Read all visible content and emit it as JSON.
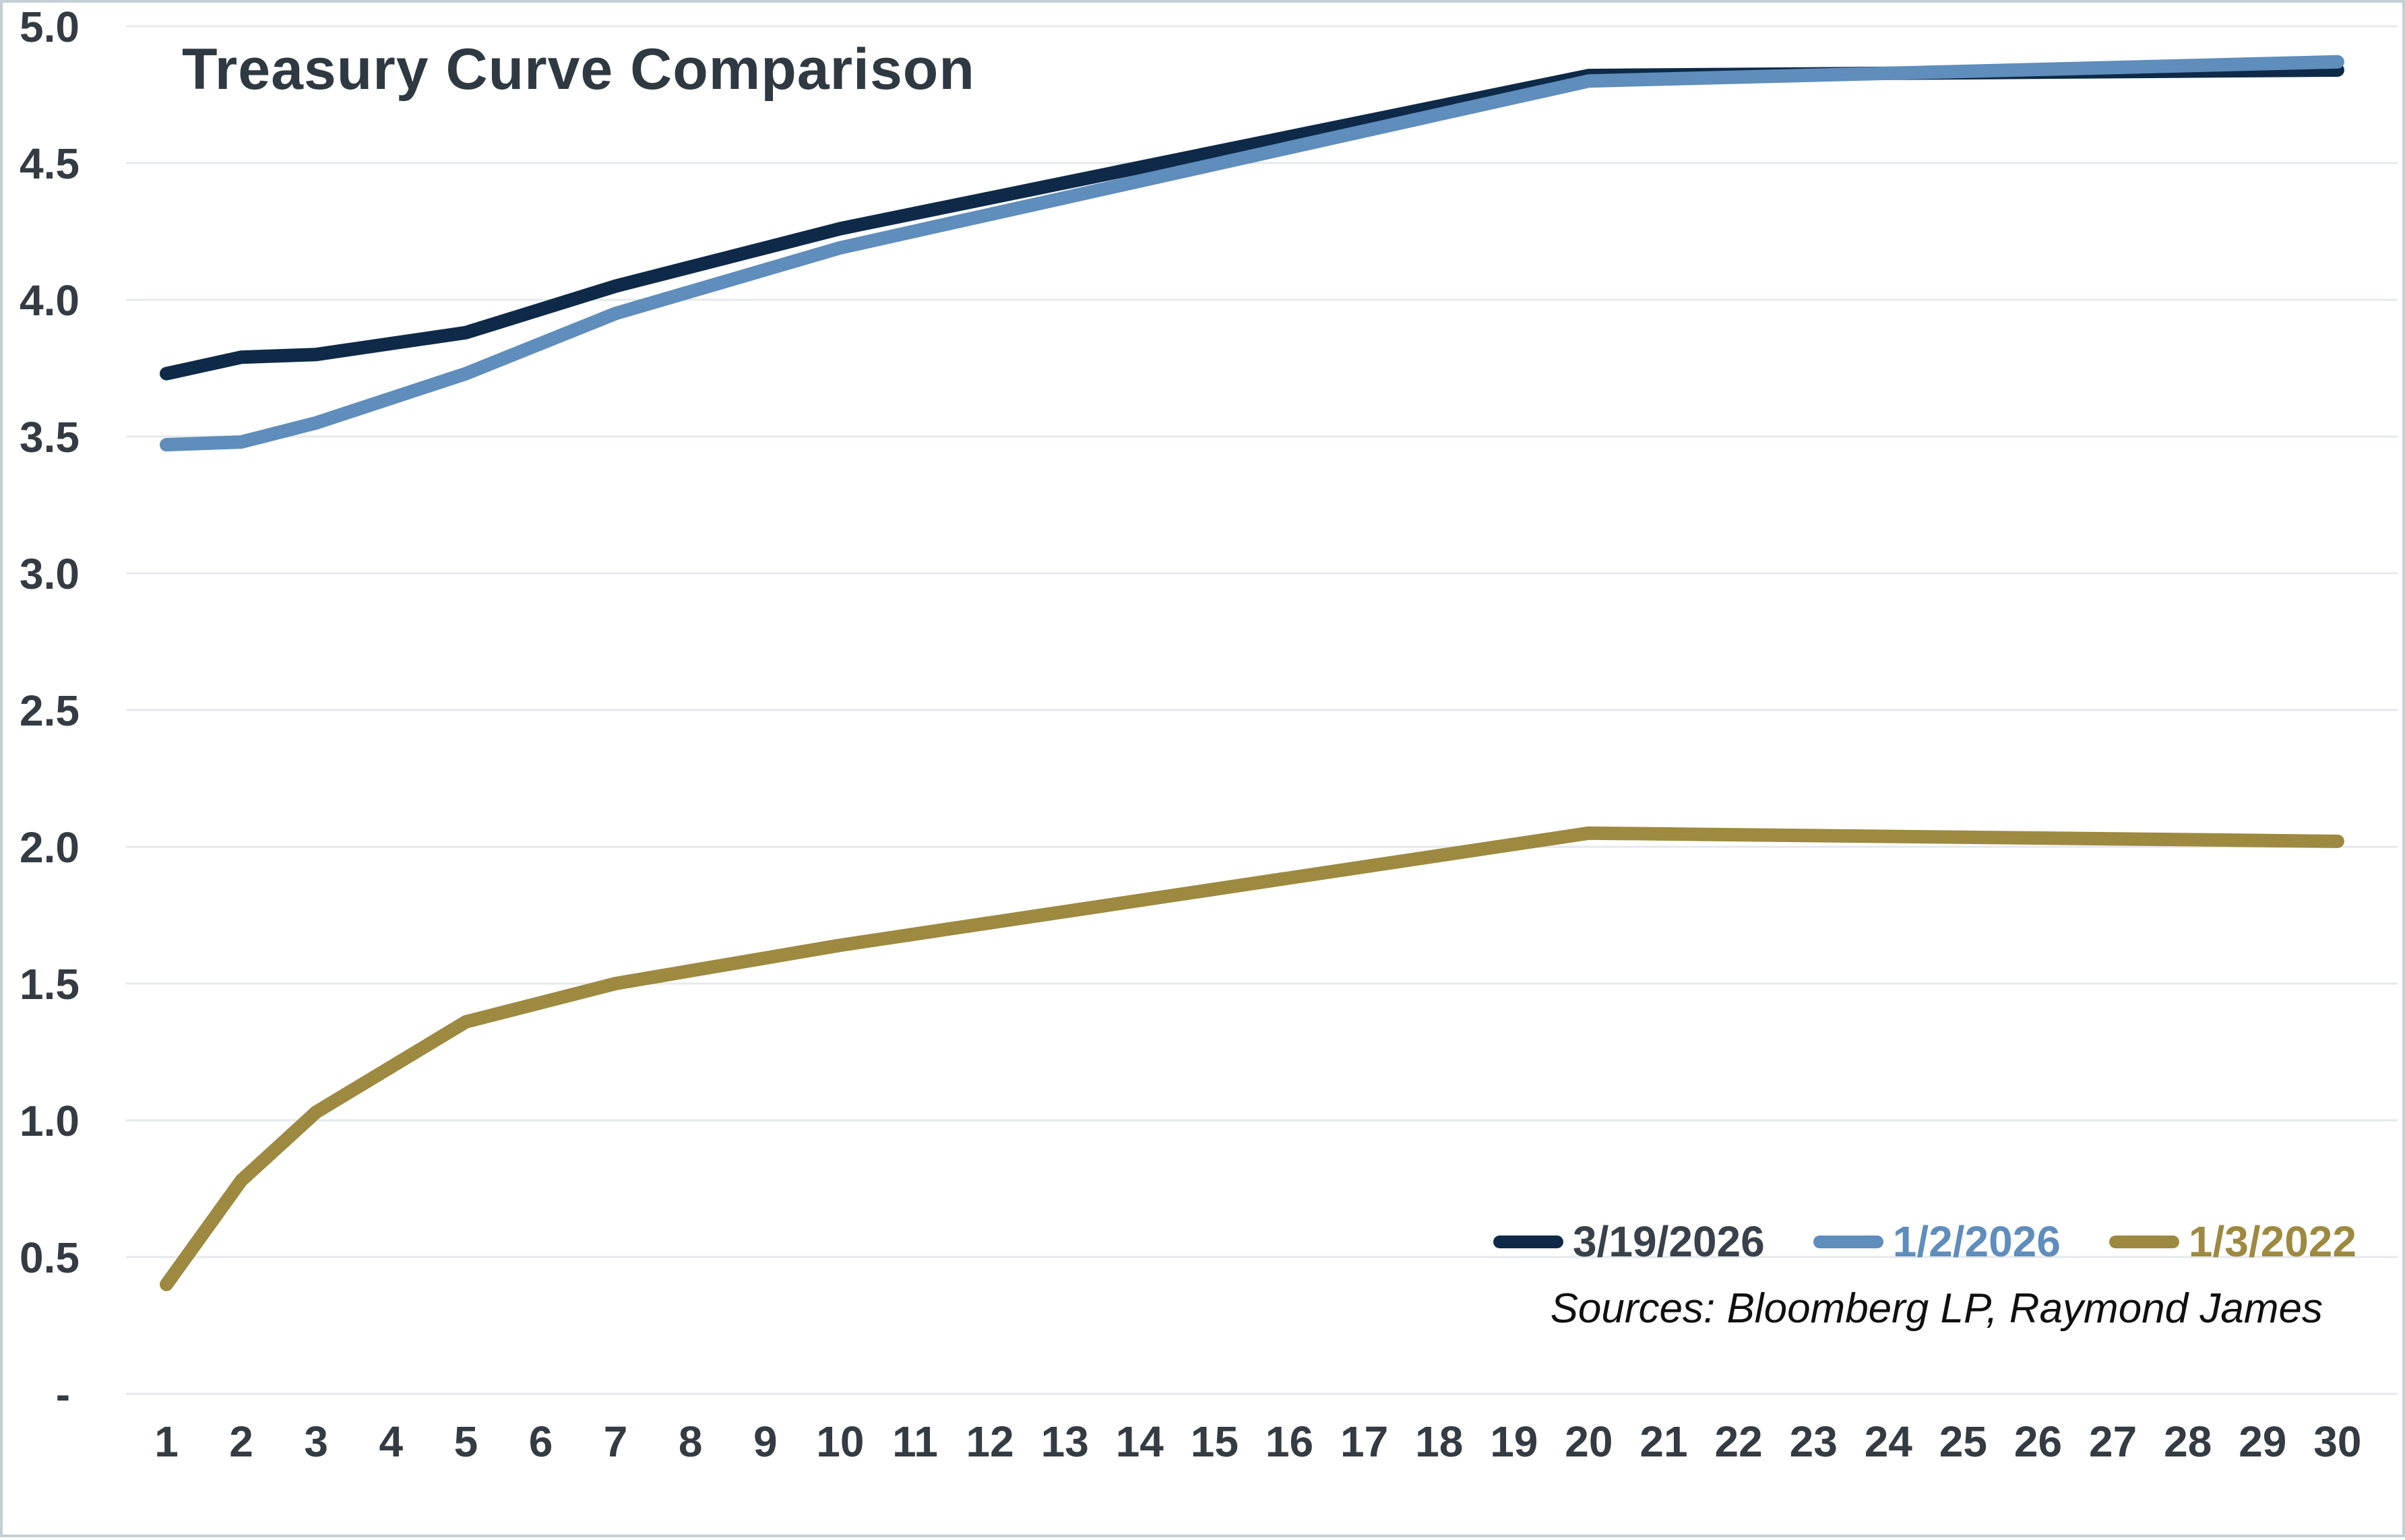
{
  "chart_data": {
    "type": "line",
    "title": "Treasury Curve Comparison",
    "source_note": "Sources: Bloomberg LP, Raymond James",
    "xlabel": "",
    "ylabel": "",
    "xlim": [
      1,
      30
    ],
    "ylim": [
      0,
      5
    ],
    "grid": true,
    "legend_position": "bottom-right",
    "x_ticks": [
      1,
      2,
      3,
      4,
      5,
      6,
      7,
      8,
      9,
      10,
      11,
      12,
      13,
      14,
      15,
      16,
      17,
      18,
      19,
      20,
      21,
      22,
      23,
      24,
      25,
      26,
      27,
      28,
      29,
      30
    ],
    "y_tick_labels": [
      "-",
      "0.5",
      "1.0",
      "1.5",
      "2.0",
      "2.5",
      "3.0",
      "3.5",
      "4.0",
      "4.5",
      "5.0"
    ],
    "y_tick_values": [
      0,
      0.5,
      1.0,
      1.5,
      2.0,
      2.5,
      3.0,
      3.5,
      4.0,
      4.5,
      5.0
    ],
    "x": [
      1,
      2,
      3,
      5,
      7,
      10,
      20,
      30
    ],
    "series": [
      {
        "name": "3/19/2026",
        "color": "#0e2a48",
        "label_color": "#39424b",
        "values": [
          3.73,
          3.79,
          3.8,
          3.88,
          4.05,
          4.26,
          4.82,
          4.84
        ]
      },
      {
        "name": "1/2/2026",
        "color": "#5f8dbc",
        "label_color": "#5f8dbc",
        "values": [
          3.47,
          3.48,
          3.55,
          3.73,
          3.95,
          4.19,
          4.8,
          4.87
        ]
      },
      {
        "name": "1/3/2022",
        "color": "#9d8a40",
        "label_color": "#9d8a40",
        "values": [
          0.4,
          0.78,
          1.03,
          1.36,
          1.5,
          1.64,
          2.05,
          2.02
        ]
      }
    ]
  },
  "theme": {
    "gridline_color": "#e4e9ec",
    "axis_text_color": "#343b42",
    "title_color": "#2f3941",
    "frame_border_color": "#c5cfd6",
    "background_color": "#ffffff"
  }
}
